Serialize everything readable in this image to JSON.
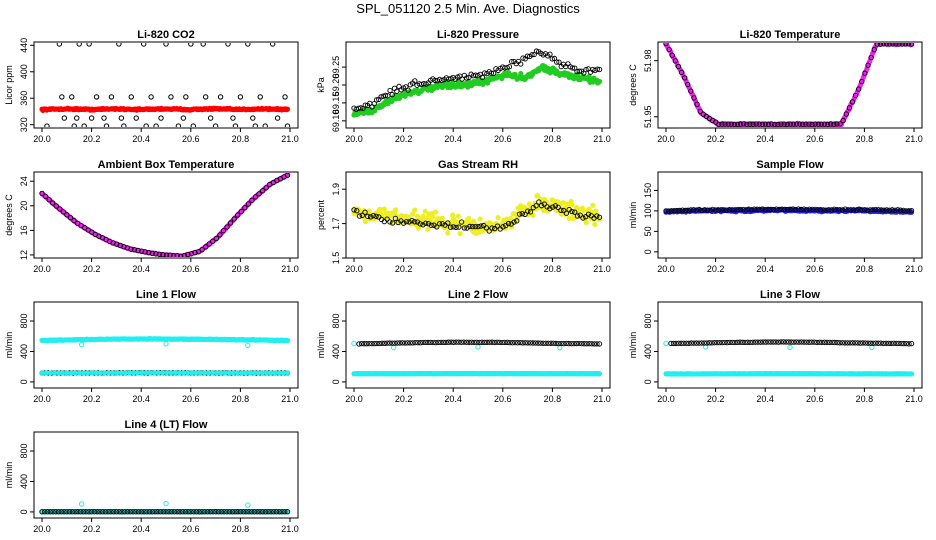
{
  "page": {
    "title": "SPL_051120  2.5 Min. Ave. Diagnostics"
  },
  "chart_data": [
    {
      "id": "co2",
      "type": "scatter",
      "title": "Li-820 CO2",
      "ylabel": "Licor ppm",
      "xlim": [
        20.0,
        21.0
      ],
      "ylim": [
        315,
        445
      ],
      "xticks": [
        20.0,
        20.2,
        20.4,
        20.6,
        20.8,
        21.0
      ],
      "yticks": [
        320,
        360,
        400,
        440
      ],
      "series": [
        {
          "color": "#ff0000",
          "fill": true,
          "dense": true,
          "x_range": [
            20.0,
            20.99
          ],
          "y": [
            343,
            344,
            343,
            344,
            343,
            344,
            343,
            344,
            343,
            344,
            343
          ],
          "jitter": 1.5
        },
        {
          "color": "#000000",
          "fill": false,
          "points": [
            [
              20.02,
              318
            ],
            [
              20.07,
              442
            ],
            [
              20.08,
              362
            ],
            [
              20.09,
              330
            ],
            [
              20.12,
              362
            ],
            [
              20.13,
              318
            ],
            [
              20.14,
              330
            ],
            [
              20.15,
              442
            ],
            [
              20.17,
              318
            ],
            [
              20.19,
              442
            ],
            [
              20.2,
              330
            ],
            [
              20.22,
              362
            ],
            [
              20.25,
              330
            ],
            [
              20.26,
              318
            ],
            [
              20.28,
              362
            ],
            [
              20.31,
              442
            ],
            [
              20.32,
              330
            ],
            [
              20.33,
              318
            ],
            [
              20.36,
              362
            ],
            [
              20.38,
              330
            ],
            [
              20.41,
              442
            ],
            [
              20.42,
              318
            ],
            [
              20.44,
              362
            ],
            [
              20.46,
              318
            ],
            [
              20.48,
              330
            ],
            [
              20.5,
              442
            ],
            [
              20.52,
              362
            ],
            [
              20.55,
              318
            ],
            [
              20.57,
              330
            ],
            [
              20.58,
              362
            ],
            [
              20.6,
              442
            ],
            [
              20.61,
              318
            ],
            [
              20.65,
              442
            ],
            [
              20.66,
              362
            ],
            [
              20.68,
              330
            ],
            [
              20.7,
              318
            ],
            [
              20.72,
              362
            ],
            [
              20.75,
              442
            ],
            [
              20.77,
              330
            ],
            [
              20.78,
              318
            ],
            [
              20.8,
              362
            ],
            [
              20.83,
              442
            ],
            [
              20.85,
              330
            ],
            [
              20.86,
              318
            ],
            [
              20.88,
              362
            ],
            [
              20.9,
              318
            ],
            [
              20.93,
              442
            ],
            [
              20.95,
              330
            ],
            [
              20.98,
              362
            ],
            [
              20.99,
              318
            ]
          ]
        }
      ]
    },
    {
      "id": "pressure",
      "type": "scatter",
      "title": "Li-820 Pressure",
      "ylabel": "kPa",
      "xlim": [
        20.0,
        21.0
      ],
      "ylim": [
        69.08,
        69.32
      ],
      "xticks": [
        20.0,
        20.2,
        20.4,
        20.6,
        20.8,
        21.0
      ],
      "yticks": [
        69.1,
        69.15,
        69.2,
        69.25
      ],
      "series": [
        {
          "color": "#22cc22",
          "fill": true,
          "dense": true,
          "x_range": [
            20.0,
            20.99
          ],
          "y": [
            69.12,
            69.13,
            69.16,
            69.18,
            69.19,
            69.2,
            69.2,
            69.21,
            69.23,
            69.22,
            69.25,
            69.23,
            69.22,
            69.21
          ],
          "jitter": 0.012
        },
        {
          "color": "#000000",
          "fill": false,
          "trace": true,
          "x_range": [
            20.0,
            20.99
          ],
          "y": [
            69.13,
            69.15,
            69.18,
            69.2,
            69.21,
            69.22,
            69.22,
            69.23,
            69.25,
            69.27,
            69.29,
            69.26,
            69.24,
            69.24
          ],
          "jitter": 0.014,
          "count": 110
        }
      ]
    },
    {
      "id": "licor_temp",
      "type": "scatter",
      "title": "Li-820 Temperature",
      "ylabel": "degrees C",
      "xlim": [
        20.0,
        21.0
      ],
      "ylim": [
        51.944,
        51.99
      ],
      "xticks": [
        20.0,
        20.2,
        20.4,
        20.6,
        20.8,
        21.0
      ],
      "yticks": [
        51.95,
        51.98
      ],
      "series": [
        {
          "color": "#ee22ee",
          "fill": true,
          "dense": true,
          "x_range": [
            20.0,
            20.99
          ],
          "y": [
            51.989,
            51.972,
            51.952,
            51.946,
            51.946,
            51.946,
            51.946,
            51.946,
            51.946,
            51.946,
            51.946,
            51.965,
            51.989,
            51.989,
            51.989
          ],
          "jitter": 0.0006
        },
        {
          "color": "#000000",
          "fill": false,
          "trace": true,
          "x_range": [
            20.0,
            20.99
          ],
          "y": [
            51.989,
            51.972,
            51.952,
            51.946,
            51.946,
            51.946,
            51.946,
            51.946,
            51.946,
            51.946,
            51.946,
            51.965,
            51.989,
            51.989,
            51.989
          ],
          "jitter": 0.0003,
          "count": 80
        }
      ]
    },
    {
      "id": "box_temp",
      "type": "scatter",
      "title": "Ambient Box Temperature",
      "ylabel": "degrees C",
      "xlim": [
        20.0,
        21.0
      ],
      "ylim": [
        11.5,
        25.5
      ],
      "xticks": [
        20.0,
        20.2,
        20.4,
        20.6,
        20.8,
        21.0
      ],
      "yticks": [
        12,
        16,
        20,
        24
      ],
      "series": [
        {
          "color": "#ee22ee",
          "fill": true,
          "dense": true,
          "x_range": [
            20.0,
            20.99
          ],
          "y": [
            22.0,
            19.5,
            17.2,
            15.4,
            14.0,
            13.0,
            12.4,
            12.0,
            11.8,
            12.6,
            14.8,
            18.0,
            21.0,
            23.5,
            25.0
          ],
          "jitter": 0.05
        },
        {
          "color": "#000000",
          "fill": false,
          "trace": true,
          "x_range": [
            20.0,
            20.99
          ],
          "y": [
            22.0,
            19.5,
            17.2,
            15.4,
            14.0,
            13.0,
            12.4,
            12.0,
            11.8,
            12.6,
            14.8,
            18.0,
            21.0,
            23.5,
            25.0
          ],
          "jitter": 0.05,
          "count": 70
        }
      ]
    },
    {
      "id": "rh",
      "type": "scatter",
      "title": "Gas Stream RH",
      "ylabel": "percent",
      "xlim": [
        20.0,
        21.0
      ],
      "ylim": [
        1.5,
        2.0
      ],
      "xticks": [
        20.0,
        20.2,
        20.4,
        20.6,
        20.8,
        21.0
      ],
      "yticks": [
        1.5,
        1.7,
        1.9
      ],
      "series": [
        {
          "color": "#eeee22",
          "fill": true,
          "dense": true,
          "x_range": [
            20.0,
            20.99
          ],
          "y": [
            1.77,
            1.76,
            1.74,
            1.73,
            1.72,
            1.7,
            1.69,
            1.68,
            1.69,
            1.78,
            1.82,
            1.79,
            1.76,
            1.74
          ],
          "jitter": 0.07
        },
        {
          "color": "#000000",
          "fill": false,
          "trace": true,
          "x_range": [
            20.0,
            20.99
          ],
          "y": [
            1.76,
            1.74,
            1.72,
            1.71,
            1.7,
            1.69,
            1.68,
            1.67,
            1.68,
            1.76,
            1.81,
            1.78,
            1.75,
            1.73
          ],
          "jitter": 0.03,
          "count": 90
        }
      ]
    },
    {
      "id": "sample_flow",
      "type": "scatter",
      "title": "Sample Flow",
      "ylabel": "ml/min",
      "xlim": [
        20.0,
        21.0
      ],
      "ylim": [
        -15,
        195
      ],
      "xticks": [
        20.0,
        20.2,
        20.4,
        20.6,
        20.8,
        21.0
      ],
      "yticks": [
        0,
        50,
        100,
        150
      ],
      "series": [
        {
          "color": "#2222ee",
          "fill": true,
          "dense": true,
          "x_range": [
            20.0,
            20.99
          ],
          "y": [
            98,
            100,
            101,
            100,
            102,
            101,
            100,
            101,
            99,
            98
          ],
          "jitter": 3
        },
        {
          "color": "#000000",
          "fill": false,
          "trace": true,
          "x_range": [
            20.0,
            20.99
          ],
          "y": [
            100,
            102,
            103,
            103,
            104,
            104,
            103,
            103,
            102,
            101
          ],
          "jitter": 2,
          "count": 90
        }
      ]
    },
    {
      "id": "line1",
      "type": "scatter",
      "title": "Line 1 Flow",
      "ylabel": "ml/min",
      "xlim": [
        20.0,
        21.0
      ],
      "ylim": [
        -80,
        1050
      ],
      "xticks": [
        20.0,
        20.2,
        20.4,
        20.6,
        20.8,
        21.0
      ],
      "yticks": [
        0,
        400,
        800
      ],
      "series": [
        {
          "color": "#22eeee",
          "fill": true,
          "dense": true,
          "x_range": [
            20.0,
            20.99
          ],
          "y": [
            545,
            555,
            562,
            565,
            562,
            558,
            552,
            545
          ],
          "jitter": 6
        },
        {
          "color": "#22eeee",
          "fill": false,
          "points": [
            [
              20.16,
              490
            ],
            [
              20.5,
              500
            ],
            [
              20.83,
              480
            ]
          ]
        },
        {
          "color": "#000000",
          "fill": false,
          "trace": true,
          "x_range": [
            20.0,
            20.99
          ],
          "y": [
            118,
            118,
            119,
            119,
            118,
            118
          ],
          "jitter": 2,
          "count": 80
        },
        {
          "color": "#22eeee",
          "fill": true,
          "dense": true,
          "x_range": [
            20.0,
            20.99
          ],
          "y": [
            118,
            118,
            119,
            119,
            118,
            118
          ],
          "jitter": 1.5,
          "sparse": true
        }
      ]
    },
    {
      "id": "line2",
      "type": "scatter",
      "title": "Line 2 Flow",
      "ylabel": "ml/min",
      "xlim": [
        20.0,
        21.0
      ],
      "ylim": [
        -80,
        1050
      ],
      "xticks": [
        20.0,
        20.2,
        20.4,
        20.6,
        20.8,
        21.0
      ],
      "yticks": [
        0,
        400,
        800
      ],
      "series": [
        {
          "color": "#22eeee",
          "fill": true,
          "dense": true,
          "x_range": [
            20.0,
            20.99
          ],
          "y": [
            108,
            108,
            109,
            109,
            108,
            108
          ],
          "jitter": 3
        },
        {
          "color": "#22eeee",
          "fill": false,
          "points": [
            [
              20.0,
              505
            ],
            [
              20.16,
              450
            ],
            [
              20.5,
              460
            ],
            [
              20.83,
              450
            ]
          ]
        },
        {
          "color": "#000000",
          "fill": false,
          "trace": true,
          "x_range": [
            20.02,
            20.99
          ],
          "y": [
            500,
            510,
            518,
            522,
            520,
            512,
            505,
            500
          ],
          "jitter": 3,
          "count": 95
        }
      ]
    },
    {
      "id": "line3",
      "type": "scatter",
      "title": "Line 3 Flow",
      "ylabel": "ml/min",
      "xlim": [
        20.0,
        21.0
      ],
      "ylim": [
        -80,
        1050
      ],
      "xticks": [
        20.0,
        20.2,
        20.4,
        20.6,
        20.8,
        21.0
      ],
      "yticks": [
        0,
        400,
        800
      ],
      "series": [
        {
          "color": "#22eeee",
          "fill": true,
          "dense": true,
          "x_range": [
            20.0,
            20.99
          ],
          "y": [
            105,
            106,
            107,
            107,
            106,
            105
          ],
          "jitter": 3
        },
        {
          "color": "#22eeee",
          "fill": false,
          "points": [
            [
              20.0,
              505
            ],
            [
              20.16,
              460
            ],
            [
              20.5,
              455
            ],
            [
              20.83,
              455
            ]
          ]
        },
        {
          "color": "#000000",
          "fill": false,
          "trace": true,
          "x_range": [
            20.02,
            20.99
          ],
          "y": [
            505,
            512,
            520,
            525,
            522,
            515,
            508,
            502
          ],
          "jitter": 3,
          "count": 95
        }
      ]
    },
    {
      "id": "line4",
      "type": "scatter",
      "title": "Line 4 (LT) Flow",
      "ylabel": "ml/min",
      "xlim": [
        20.0,
        21.0
      ],
      "ylim": [
        -80,
        1050
      ],
      "xticks": [
        20.0,
        20.2,
        20.4,
        20.6,
        20.8,
        21.0
      ],
      "yticks": [
        0,
        400,
        800
      ],
      "series": [
        {
          "color": "#22eeee",
          "fill": true,
          "dense": true,
          "x_range": [
            20.0,
            20.99
          ],
          "y": [
            3,
            3,
            3,
            3,
            3
          ],
          "jitter": 2
        },
        {
          "color": "#22eeee",
          "fill": false,
          "points": [
            [
              20.16,
              105
            ],
            [
              20.5,
              110
            ],
            [
              20.83,
              90
            ]
          ]
        },
        {
          "color": "#000000",
          "fill": false,
          "trace": true,
          "x_range": [
            20.0,
            20.99
          ],
          "y": [
            2,
            2,
            2,
            2,
            2
          ],
          "jitter": 1,
          "count": 90
        }
      ]
    }
  ]
}
